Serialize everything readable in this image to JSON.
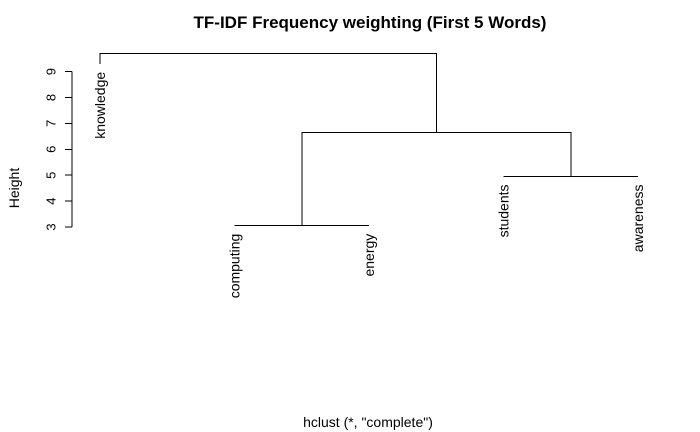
{
  "chart_data": {
    "type": "dendrogram",
    "title": "TF-IDF Frequency weighting (First 5 Words)",
    "xlabel": "hclust (*, \"complete\")",
    "ylabel": "Height",
    "yticks": [
      3,
      4,
      5,
      6,
      7,
      8,
      9
    ],
    "ylim": [
      3,
      9.7
    ],
    "leaves": [
      "knowledge",
      "computing",
      "energy",
      "students",
      "awareness"
    ],
    "merges": [
      {
        "left": "leaf:1",
        "right": "leaf:2",
        "height": 3.05
      },
      {
        "left": "leaf:3",
        "right": "leaf:4",
        "height": 4.95
      },
      {
        "left": "node:0",
        "right": "node:1",
        "height": 6.65
      },
      {
        "left": "leaf:0",
        "right": "node:2",
        "height": 9.7
      }
    ],
    "leaf_hang_heights": [
      9.3,
      3.05,
      3.05,
      4.95,
      4.95
    ]
  }
}
